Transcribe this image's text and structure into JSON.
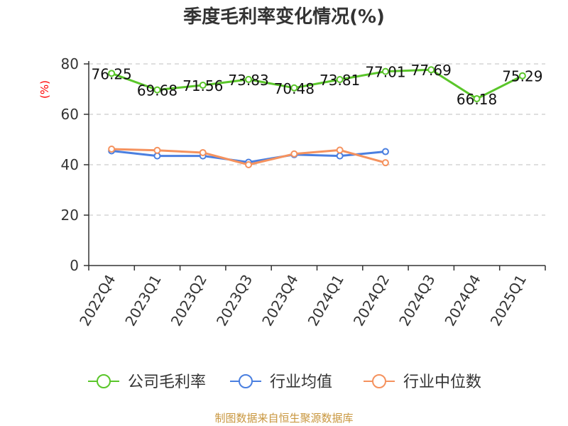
{
  "chart_data": {
    "type": "line",
    "title": "季度毛利率变化情况(%)",
    "ylabel": "(%)",
    "ylim": [
      0,
      80
    ],
    "yticks": [
      0,
      20,
      40,
      60,
      80
    ],
    "grid": true,
    "legend_position": "bottom",
    "categories": [
      "2022Q4",
      "2023Q1",
      "2023Q2",
      "2023Q3",
      "2023Q4",
      "2024Q1",
      "2024Q2",
      "2024Q3",
      "2024Q4",
      "2025Q1"
    ],
    "series": [
      {
        "name": "公司毛利率",
        "color": "#5ac62a",
        "values": [
          76.25,
          69.68,
          71.56,
          73.83,
          70.48,
          73.81,
          77.01,
          77.69,
          66.18,
          75.29
        ],
        "labels": [
          "76.25",
          "69.68",
          "71.56",
          "73.83",
          "70.48",
          "73.81",
          "77.01",
          "77.69",
          "66.18",
          "75.29"
        ]
      },
      {
        "name": "行业均值",
        "color": "#4a7fe0",
        "values": [
          45.5,
          43.5,
          43.5,
          41.0,
          44.0,
          43.5,
          45.2,
          null,
          null,
          null
        ]
      },
      {
        "name": "行业中位数",
        "color": "#f5925e",
        "values": [
          46.2,
          45.7,
          44.8,
          40.0,
          44.3,
          45.8,
          40.8,
          null,
          null,
          null
        ]
      }
    ]
  },
  "source": "制图数据来自恒生聚源数据库"
}
